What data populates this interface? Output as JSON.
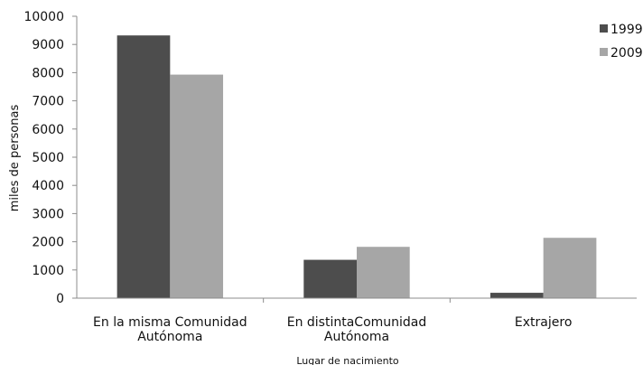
{
  "chart_data": {
    "type": "bar",
    "categories": [
      [
        "En la misma Comunidad",
        "Autónoma"
      ],
      [
        "En distintaComunidad",
        "Autónoma"
      ],
      [
        "Extrajero"
      ]
    ],
    "series": [
      {
        "name": "1999",
        "values": [
          9320,
          1360,
          190
        ],
        "color": "#4d4d4d"
      },
      {
        "name": "2009",
        "values": [
          7930,
          1820,
          2140
        ],
        "color": "#a6a6a6"
      }
    ],
    "ylim": [
      0,
      10000
    ],
    "yticks": [
      0,
      1000,
      2000,
      3000,
      4000,
      5000,
      6000,
      7000,
      8000,
      9000,
      10000
    ],
    "ylabel": "miles de personas",
    "xlabel": "Lugar de nacimiento",
    "legend_position": "top-right",
    "grid": false
  }
}
